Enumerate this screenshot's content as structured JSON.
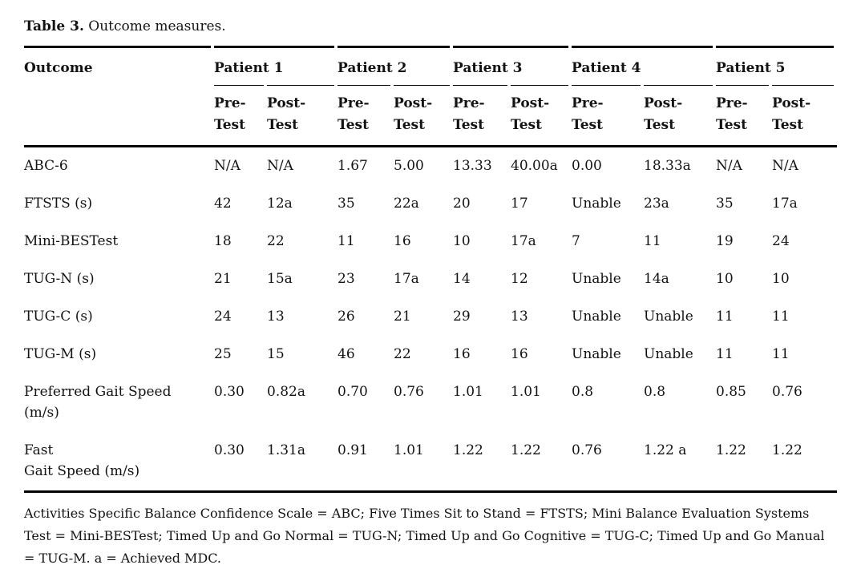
{
  "caption": {
    "label": "Table 3.",
    "text": " Outcome measures."
  },
  "table": {
    "outcome_header": "Outcome",
    "group_headers": [
      "Patient 1",
      "Patient 2",
      "Patient 3",
      "Patient 4",
      "Patient 5"
    ],
    "sub_pre": "Pre-\nTest",
    "sub_post": "Post-\nTest",
    "rows": [
      {
        "label": "ABC-6",
        "values": [
          "N/A",
          "N/A",
          "1.67",
          "5.00",
          "13.33",
          "40.00a",
          "0.00",
          "18.33a",
          "N/A",
          "N/A"
        ]
      },
      {
        "label": "FTSTS (s)",
        "values": [
          "42",
          "12a",
          "35",
          "22a",
          "20",
          "17",
          "Unable",
          "23a",
          "35",
          "17a"
        ]
      },
      {
        "label": "Mini-BESTest",
        "values": [
          "18",
          "22",
          "11",
          "16",
          "10",
          "17a",
          "7",
          "11",
          "19",
          "24"
        ]
      },
      {
        "label": "TUG-N (s)",
        "values": [
          "21",
          "15a",
          "23",
          "17a",
          "14",
          "12",
          "Unable",
          "14a",
          "10",
          "10"
        ]
      },
      {
        "label": "TUG-C (s)",
        "values": [
          "24",
          "13",
          "26",
          "21",
          "29",
          "13",
          "Unable",
          "Unable",
          "11",
          "11"
        ]
      },
      {
        "label": "TUG-M (s)",
        "values": [
          "25",
          "15",
          "46",
          "22",
          "16",
          "16",
          "Unable",
          "Unable",
          "11",
          "11"
        ]
      },
      {
        "label": "Preferred Gait Speed\n(m/s)",
        "values": [
          "0.30",
          "0.82a",
          "0.70",
          "0.76",
          "1.01",
          "1.01",
          "0.8",
          "0.8",
          "0.85",
          "0.76"
        ]
      },
      {
        "label": "Fast\nGait Speed (m/s)",
        "values": [
          "0.30",
          "1.31a",
          "0.91",
          "1.01",
          "1.22",
          "1.22",
          "0.76",
          "1.22 a",
          "1.22",
          "1.22"
        ]
      }
    ]
  },
  "footnote": {
    "lines": [
      "Activities Specific Balance Confidence Scale = ABC; Five Times Sit to Stand = FTSTS; Mini Balance Evaluation Systems",
      "Test = Mini-BESTest; Timed Up and Go Normal = TUG-N; Timed Up and Go Cognitive = TUG-C; Timed Up and Go Manual",
      "= TUG-M. a = Achieved MDC."
    ]
  },
  "colors": {
    "text": "#131313",
    "rule": "#000000",
    "background": "#ffffff"
  }
}
